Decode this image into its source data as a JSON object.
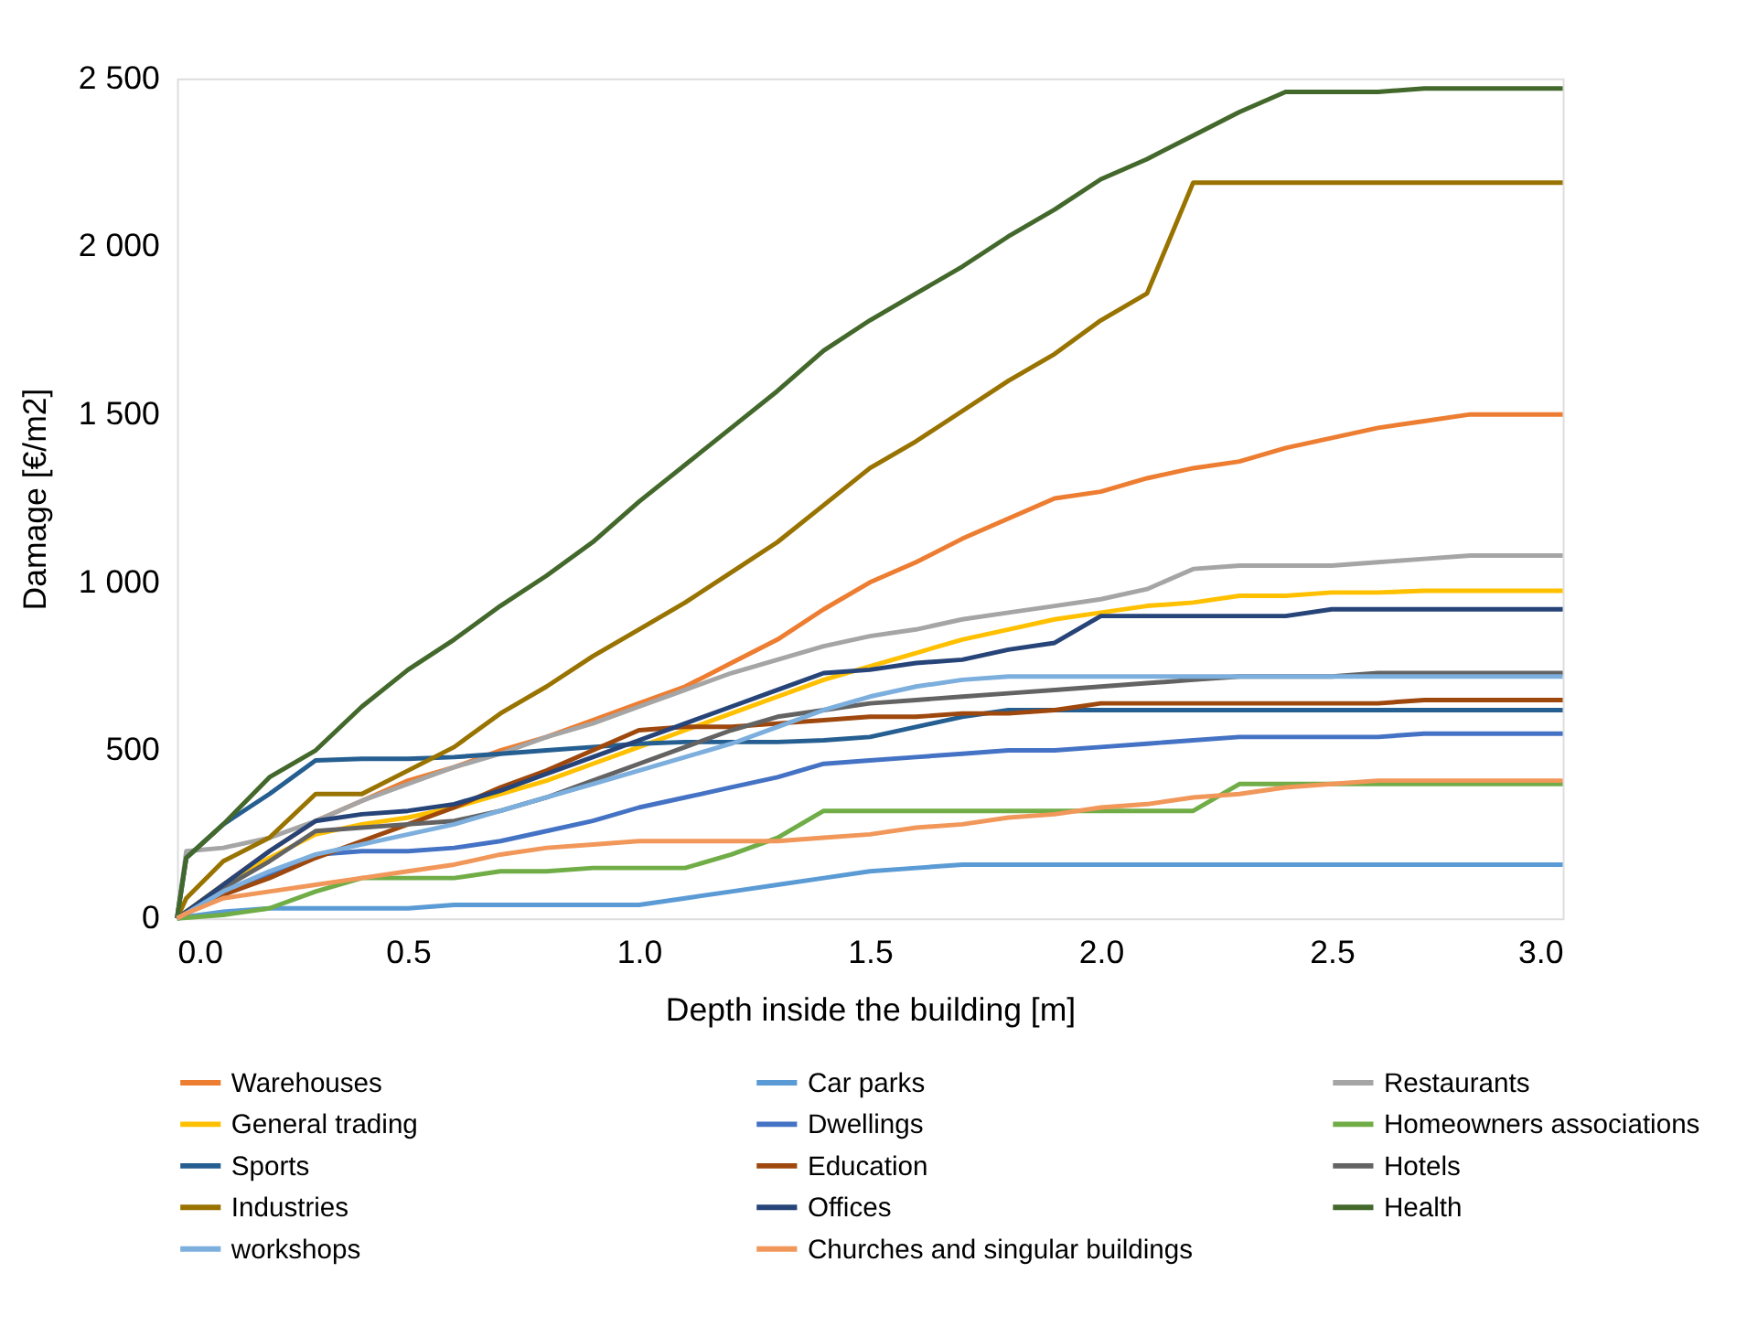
{
  "chart_data": {
    "type": "line",
    "xlabel": "Depth inside the building [m]",
    "ylabel": "Damage [€/m2]",
    "x": [
      0,
      0.02,
      0.1,
      0.2,
      0.3,
      0.4,
      0.5,
      0.6,
      0.7,
      0.8,
      0.9,
      1.0,
      1.1,
      1.2,
      1.3,
      1.4,
      1.5,
      1.6,
      1.7,
      1.8,
      1.9,
      2.0,
      2.1,
      2.2,
      2.3,
      2.4,
      2.5,
      2.6,
      2.7,
      2.8,
      2.9,
      3.0
    ],
    "xlim": [
      0,
      3
    ],
    "ylim": [
      0,
      2500
    ],
    "xticks": [
      {
        "value": 0,
        "label": "0.0"
      },
      0.5,
      {
        "value": 1,
        "label": "1.0"
      },
      1.5,
      {
        "value": 2,
        "label": "2.0"
      },
      2.5,
      {
        "value": 3,
        "label": "3.0"
      }
    ],
    "yticks": [
      0,
      500,
      {
        "value": 1000,
        "label": "1 000"
      },
      {
        "value": 1500,
        "label": "1 500"
      },
      {
        "value": 2000,
        "label": "2 000"
      },
      {
        "value": 2500,
        "label": "2 500"
      }
    ],
    "grid": false,
    "legend": "bottom",
    "marker": "none",
    "line_style": "solid",
    "series": [
      {
        "name": "Warehouses",
        "color": "#ed7d31",
        "values": [
          0,
          20,
          100,
          200,
          290,
          350,
          410,
          450,
          500,
          540,
          590,
          640,
          690,
          760,
          830,
          920,
          1000,
          1060,
          1130,
          1190,
          1250,
          1270,
          1310,
          1340,
          1360,
          1400,
          1430,
          1460,
          1480,
          1500,
          1500,
          1500
        ]
      },
      {
        "name": "Car parks",
        "color": "#5b9bd5",
        "values": [
          0,
          5,
          20,
          30,
          30,
          30,
          30,
          40,
          40,
          40,
          40,
          40,
          60,
          80,
          100,
          120,
          140,
          150,
          160,
          160,
          160,
          160,
          160,
          160,
          160,
          160,
          160,
          160,
          160,
          160,
          160,
          160
        ]
      },
      {
        "name": "Restaurants",
        "color": "#a5a5a5",
        "values": [
          0,
          200,
          210,
          240,
          290,
          350,
          400,
          450,
          490,
          540,
          580,
          630,
          680,
          730,
          770,
          810,
          840,
          860,
          890,
          910,
          930,
          950,
          980,
          1040,
          1050,
          1050,
          1050,
          1060,
          1070,
          1080,
          1080,
          1080
        ]
      },
      {
        "name": "General trading",
        "color": "#ffc000",
        "values": [
          0,
          20,
          100,
          180,
          250,
          280,
          300,
          330,
          370,
          410,
          460,
          510,
          560,
          610,
          660,
          710,
          750,
          790,
          830,
          860,
          890,
          910,
          930,
          940,
          960,
          960,
          970,
          970,
          975,
          975,
          975,
          975
        ]
      },
      {
        "name": "Dwellings",
        "color": "#4472c4",
        "values": [
          0,
          15,
          70,
          130,
          190,
          200,
          200,
          210,
          230,
          260,
          290,
          330,
          360,
          390,
          420,
          460,
          470,
          480,
          490,
          500,
          500,
          510,
          520,
          530,
          540,
          540,
          540,
          540,
          550,
          550,
          550,
          550
        ]
      },
      {
        "name": "Homeowners associations",
        "color": "#70ad47",
        "values": [
          0,
          2,
          10,
          30,
          80,
          120,
          120,
          120,
          140,
          140,
          150,
          150,
          150,
          190,
          240,
          320,
          320,
          320,
          320,
          320,
          320,
          320,
          320,
          320,
          400,
          400,
          400,
          400,
          400,
          400,
          400,
          400
        ]
      },
      {
        "name": "Sports",
        "color": "#255e91",
        "values": [
          0,
          180,
          280,
          370,
          470,
          475,
          475,
          480,
          490,
          500,
          510,
          520,
          525,
          525,
          525,
          530,
          540,
          570,
          600,
          620,
          620,
          620,
          620,
          620,
          620,
          620,
          620,
          620,
          620,
          620,
          620,
          620
        ]
      },
      {
        "name": "Education",
        "color": "#9e480e",
        "values": [
          0,
          15,
          70,
          120,
          180,
          230,
          280,
          330,
          390,
          440,
          500,
          560,
          570,
          570,
          580,
          590,
          600,
          600,
          610,
          610,
          620,
          640,
          640,
          640,
          640,
          640,
          640,
          640,
          650,
          650,
          650,
          650
        ]
      },
      {
        "name": "Hotels",
        "color": "#636363",
        "values": [
          0,
          20,
          90,
          170,
          260,
          270,
          280,
          290,
          320,
          360,
          410,
          460,
          510,
          560,
          600,
          620,
          640,
          650,
          660,
          670,
          680,
          690,
          700,
          710,
          720,
          720,
          720,
          730,
          730,
          730,
          730,
          730
        ]
      },
      {
        "name": "Industries",
        "color": "#997300",
        "values": [
          0,
          60,
          170,
          240,
          370,
          370,
          440,
          510,
          610,
          690,
          780,
          860,
          940,
          1030,
          1120,
          1230,
          1340,
          1420,
          1510,
          1600,
          1680,
          1780,
          1860,
          2190,
          2190,
          2190,
          2190,
          2190,
          2190,
          2190,
          2190,
          2190
        ]
      },
      {
        "name": "Offices",
        "color": "#264478",
        "values": [
          0,
          20,
          100,
          200,
          290,
          310,
          320,
          340,
          380,
          430,
          480,
          530,
          580,
          630,
          680,
          730,
          740,
          760,
          770,
          800,
          820,
          900,
          900,
          900,
          900,
          900,
          920,
          920,
          920,
          920,
          920,
          920
        ]
      },
      {
        "name": "Health",
        "color": "#43682b",
        "values": [
          0,
          180,
          280,
          420,
          500,
          630,
          740,
          830,
          930,
          1020,
          1120,
          1240,
          1350,
          1460,
          1570,
          1690,
          1780,
          1860,
          1940,
          2030,
          2110,
          2200,
          2260,
          2330,
          2400,
          2460,
          2460,
          2460,
          2470,
          2470,
          2470,
          2470
        ]
      },
      {
        "name": "workshops",
        "color": "#7cafdd",
        "values": [
          0,
          15,
          80,
          140,
          190,
          220,
          250,
          280,
          320,
          360,
          400,
          440,
          480,
          520,
          570,
          620,
          660,
          690,
          710,
          720,
          720,
          720,
          720,
          720,
          720,
          720,
          720,
          720,
          720,
          720,
          720,
          720
        ]
      },
      {
        "name": "Churches and singular buildings",
        "color": "#f1975a",
        "values": [
          0,
          15,
          60,
          80,
          100,
          120,
          140,
          160,
          190,
          210,
          220,
          230,
          230,
          230,
          230,
          240,
          250,
          270,
          280,
          300,
          310,
          330,
          340,
          360,
          370,
          390,
          400,
          410,
          410,
          410,
          410,
          410
        ]
      }
    ]
  }
}
